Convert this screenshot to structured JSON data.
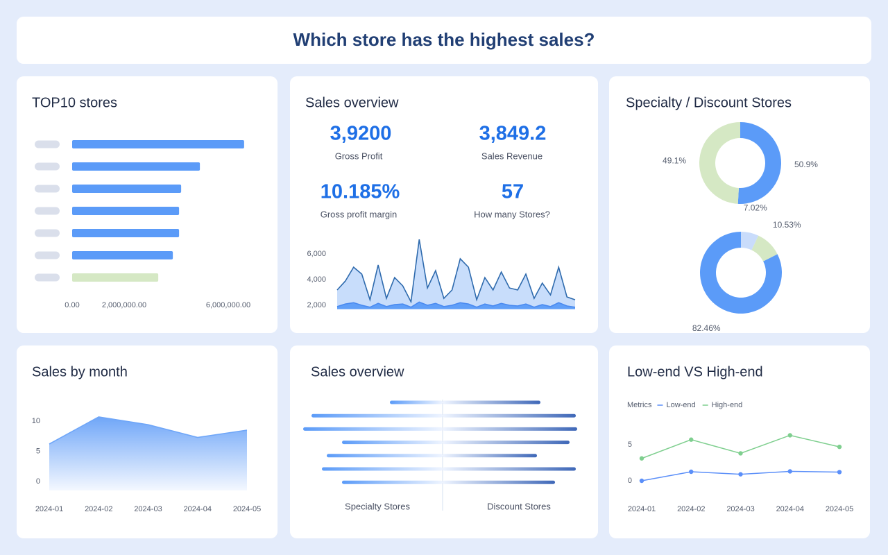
{
  "header": {
    "title": "Which store has the highest sales?"
  },
  "kpis": [
    {
      "value": "3,9200",
      "label": "Gross Profit"
    },
    {
      "value": "3,849.2",
      "label": "Sales Revenue"
    },
    {
      "value": "10.185%",
      "label": "Gross profit margin"
    },
    {
      "value": "57",
      "label": "How many Stores?"
    }
  ],
  "chart_data": [
    {
      "type": "bar",
      "orientation": "horizontal",
      "title": "TOP10 stores",
      "categories": [
        null,
        null,
        null,
        null,
        null,
        null,
        null
      ],
      "values": [
        6610000,
        4910000,
        4190000,
        4110000,
        4110000,
        3870000,
        3310000
      ],
      "colors": [
        "#5b9bf8",
        "#5b9bf8",
        "#5b9bf8",
        "#5b9bf8",
        "#5b9bf8",
        "#5b9bf8",
        "#d5e8c4"
      ],
      "xlim": [
        0,
        6800000
      ],
      "xticks": [
        {
          "value": 0,
          "label": "0.00"
        },
        {
          "value": 2000000,
          "label": "2,000,000.00"
        },
        {
          "value": 6000000,
          "label": "6,000,000.00"
        }
      ]
    },
    {
      "type": "area",
      "title": "Sales overview",
      "series": [
        {
          "color": "#c5dbfb",
          "line_color": "#2e6aad",
          "values": [
            3190,
            3890,
            4970,
            4430,
            2430,
            5140,
            2540,
            4160,
            3510,
            2270,
            7130,
            3350,
            4700,
            2540,
            3190,
            5620,
            4970,
            2430,
            4160,
            3190,
            4590,
            3350,
            3190,
            4430,
            2540,
            3730,
            2810,
            4970,
            2650,
            2430
          ]
        },
        {
          "color": "#5b9bf8",
          "line_color": "#4a8af0",
          "values": [
            1900,
            2100,
            2200,
            2000,
            1850,
            2150,
            1900,
            2050,
            2100,
            1850,
            2250,
            2000,
            2150,
            1900,
            2000,
            2200,
            2100,
            1850,
            2100,
            1950,
            2150,
            2000,
            1950,
            2100,
            1850,
            2050,
            1900,
            2200,
            1950,
            1850
          ]
        }
      ],
      "ylim": [
        1700,
        7200
      ],
      "yticks": [
        {
          "value": 2000,
          "label": "2,000"
        },
        {
          "value": 4000,
          "label": "4,000"
        },
        {
          "value": 6000,
          "label": "6,000"
        }
      ]
    },
    {
      "type": "pie",
      "donut": true,
      "title": "Specialty / Discount Stores",
      "values": [
        50.9,
        49.1
      ],
      "value_labels": [
        "50.9%",
        "49.1%"
      ],
      "colors": [
        "#5b9bf8",
        "#d5e8c4"
      ]
    },
    {
      "type": "pie",
      "donut": true,
      "values": [
        7.02,
        10.53,
        82.46
      ],
      "value_labels": [
        "7.02%",
        "10.53%",
        "82.46%"
      ],
      "colors": [
        "#c9dcfb",
        "#d5e8c4",
        "#5b9bf8"
      ]
    },
    {
      "type": "area",
      "title": "Sales by month",
      "gradient": true,
      "categories": [
        "2024-01",
        "2024-02",
        "2024-03",
        "2024-04",
        "2024-05"
      ],
      "series": [
        {
          "color": "#6fa6f8",
          "line_color": "#6fa6f8",
          "values": [
            6.2,
            10.7,
            9.4,
            7.3,
            8.5
          ]
        }
      ],
      "ylim": [
        -1.5,
        12
      ],
      "yticks": [
        0,
        5,
        10
      ]
    },
    {
      "type": "diverging_bar",
      "title": "Sales overview",
      "series": [
        {
          "name": "Specialty Stores",
          "color": "#5b9bf8",
          "values": [
            76,
            189,
            201,
            145,
            167,
            174,
            145
          ]
        },
        {
          "name": "Discount Stores",
          "color": "#3f68b8",
          "values": [
            141,
            192,
            194,
            183,
            136,
            192,
            162
          ]
        }
      ],
      "xlim": [
        0,
        200
      ]
    },
    {
      "type": "line",
      "title": "Low-end VS High-end",
      "legend_title": "Metrics",
      "categories": [
        "2024-01",
        "2024-02",
        "2024-03",
        "2024-04",
        "2024-05"
      ],
      "series": [
        {
          "name": "Low-end",
          "color": "#5b8ff9",
          "values": [
            0,
            1.25,
            0.9,
            1.3,
            1.2
          ]
        },
        {
          "name": "High-end",
          "color": "#7fcf8f",
          "values": [
            3.1,
            5.7,
            3.8,
            6.3,
            4.7
          ]
        }
      ],
      "ylim": [
        -1,
        8
      ],
      "yticks": [
        0,
        5
      ]
    }
  ]
}
